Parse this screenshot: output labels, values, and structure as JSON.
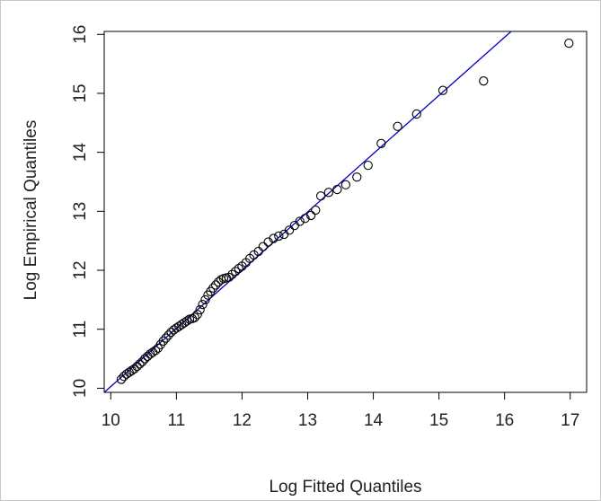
{
  "chart_data": {
    "type": "scatter",
    "title": "",
    "xlabel": "Log Fitted Quantiles",
    "ylabel": "Log Empirical Quantiles",
    "xlim": [
      9.9,
      17.25
    ],
    "ylim": [
      9.93,
      16.05
    ],
    "xticks": [
      10,
      11,
      12,
      13,
      14,
      15,
      16,
      17
    ],
    "yticks": [
      10,
      11,
      12,
      13,
      14,
      15,
      16
    ],
    "grid": false,
    "legend": "none",
    "colors": {
      "points": "#000000",
      "line": "#0000cc",
      "axis": "#000000"
    },
    "reference_line": {
      "x1": 9.9,
      "y1": 9.93,
      "x2": 16.1,
      "y2": 16.05
    },
    "points": [
      {
        "x": 10.16,
        "y": 10.15
      },
      {
        "x": 10.2,
        "y": 10.2
      },
      {
        "x": 10.24,
        "y": 10.24
      },
      {
        "x": 10.28,
        "y": 10.27
      },
      {
        "x": 10.32,
        "y": 10.3
      },
      {
        "x": 10.36,
        "y": 10.33
      },
      {
        "x": 10.4,
        "y": 10.37
      },
      {
        "x": 10.44,
        "y": 10.41
      },
      {
        "x": 10.48,
        "y": 10.45
      },
      {
        "x": 10.52,
        "y": 10.5
      },
      {
        "x": 10.56,
        "y": 10.54
      },
      {
        "x": 10.6,
        "y": 10.58
      },
      {
        "x": 10.64,
        "y": 10.61
      },
      {
        "x": 10.68,
        "y": 10.64
      },
      {
        "x": 10.72,
        "y": 10.68
      },
      {
        "x": 10.76,
        "y": 10.74
      },
      {
        "x": 10.8,
        "y": 10.8
      },
      {
        "x": 10.84,
        "y": 10.85
      },
      {
        "x": 10.88,
        "y": 10.9
      },
      {
        "x": 10.92,
        "y": 10.95
      },
      {
        "x": 10.96,
        "y": 10.99
      },
      {
        "x": 11.0,
        "y": 11.02
      },
      {
        "x": 11.04,
        "y": 11.05
      },
      {
        "x": 11.08,
        "y": 11.08
      },
      {
        "x": 11.12,
        "y": 11.11
      },
      {
        "x": 11.16,
        "y": 11.14
      },
      {
        "x": 11.2,
        "y": 11.17
      },
      {
        "x": 11.24,
        "y": 11.18
      },
      {
        "x": 11.28,
        "y": 11.2
      },
      {
        "x": 11.32,
        "y": 11.25
      },
      {
        "x": 11.36,
        "y": 11.33
      },
      {
        "x": 11.4,
        "y": 11.42
      },
      {
        "x": 11.44,
        "y": 11.5
      },
      {
        "x": 11.48,
        "y": 11.58
      },
      {
        "x": 11.52,
        "y": 11.64
      },
      {
        "x": 11.56,
        "y": 11.7
      },
      {
        "x": 11.6,
        "y": 11.75
      },
      {
        "x": 11.64,
        "y": 11.8
      },
      {
        "x": 11.68,
        "y": 11.84
      },
      {
        "x": 11.72,
        "y": 11.86
      },
      {
        "x": 11.76,
        "y": 11.87
      },
      {
        "x": 11.8,
        "y": 11.88
      },
      {
        "x": 11.85,
        "y": 11.93
      },
      {
        "x": 11.9,
        "y": 11.98
      },
      {
        "x": 11.95,
        "y": 12.03
      },
      {
        "x": 12.0,
        "y": 12.07
      },
      {
        "x": 12.06,
        "y": 12.13
      },
      {
        "x": 12.12,
        "y": 12.2
      },
      {
        "x": 12.18,
        "y": 12.26
      },
      {
        "x": 12.25,
        "y": 12.32
      },
      {
        "x": 12.32,
        "y": 12.4
      },
      {
        "x": 12.4,
        "y": 12.48
      },
      {
        "x": 12.48,
        "y": 12.54
      },
      {
        "x": 12.56,
        "y": 12.58
      },
      {
        "x": 12.64,
        "y": 12.61
      },
      {
        "x": 12.72,
        "y": 12.68
      },
      {
        "x": 12.8,
        "y": 12.76
      },
      {
        "x": 12.88,
        "y": 12.83
      },
      {
        "x": 12.96,
        "y": 12.88
      },
      {
        "x": 13.05,
        "y": 12.93
      },
      {
        "x": 13.12,
        "y": 13.02
      },
      {
        "x": 13.2,
        "y": 13.26
      },
      {
        "x": 13.32,
        "y": 13.32
      },
      {
        "x": 13.45,
        "y": 13.37
      },
      {
        "x": 13.58,
        "y": 13.45
      },
      {
        "x": 13.75,
        "y": 13.58
      },
      {
        "x": 13.92,
        "y": 13.78
      },
      {
        "x": 14.12,
        "y": 14.15
      },
      {
        "x": 14.37,
        "y": 14.44
      },
      {
        "x": 14.66,
        "y": 14.65
      },
      {
        "x": 15.06,
        "y": 15.05
      },
      {
        "x": 15.68,
        "y": 15.21
      },
      {
        "x": 16.98,
        "y": 15.85
      }
    ]
  }
}
